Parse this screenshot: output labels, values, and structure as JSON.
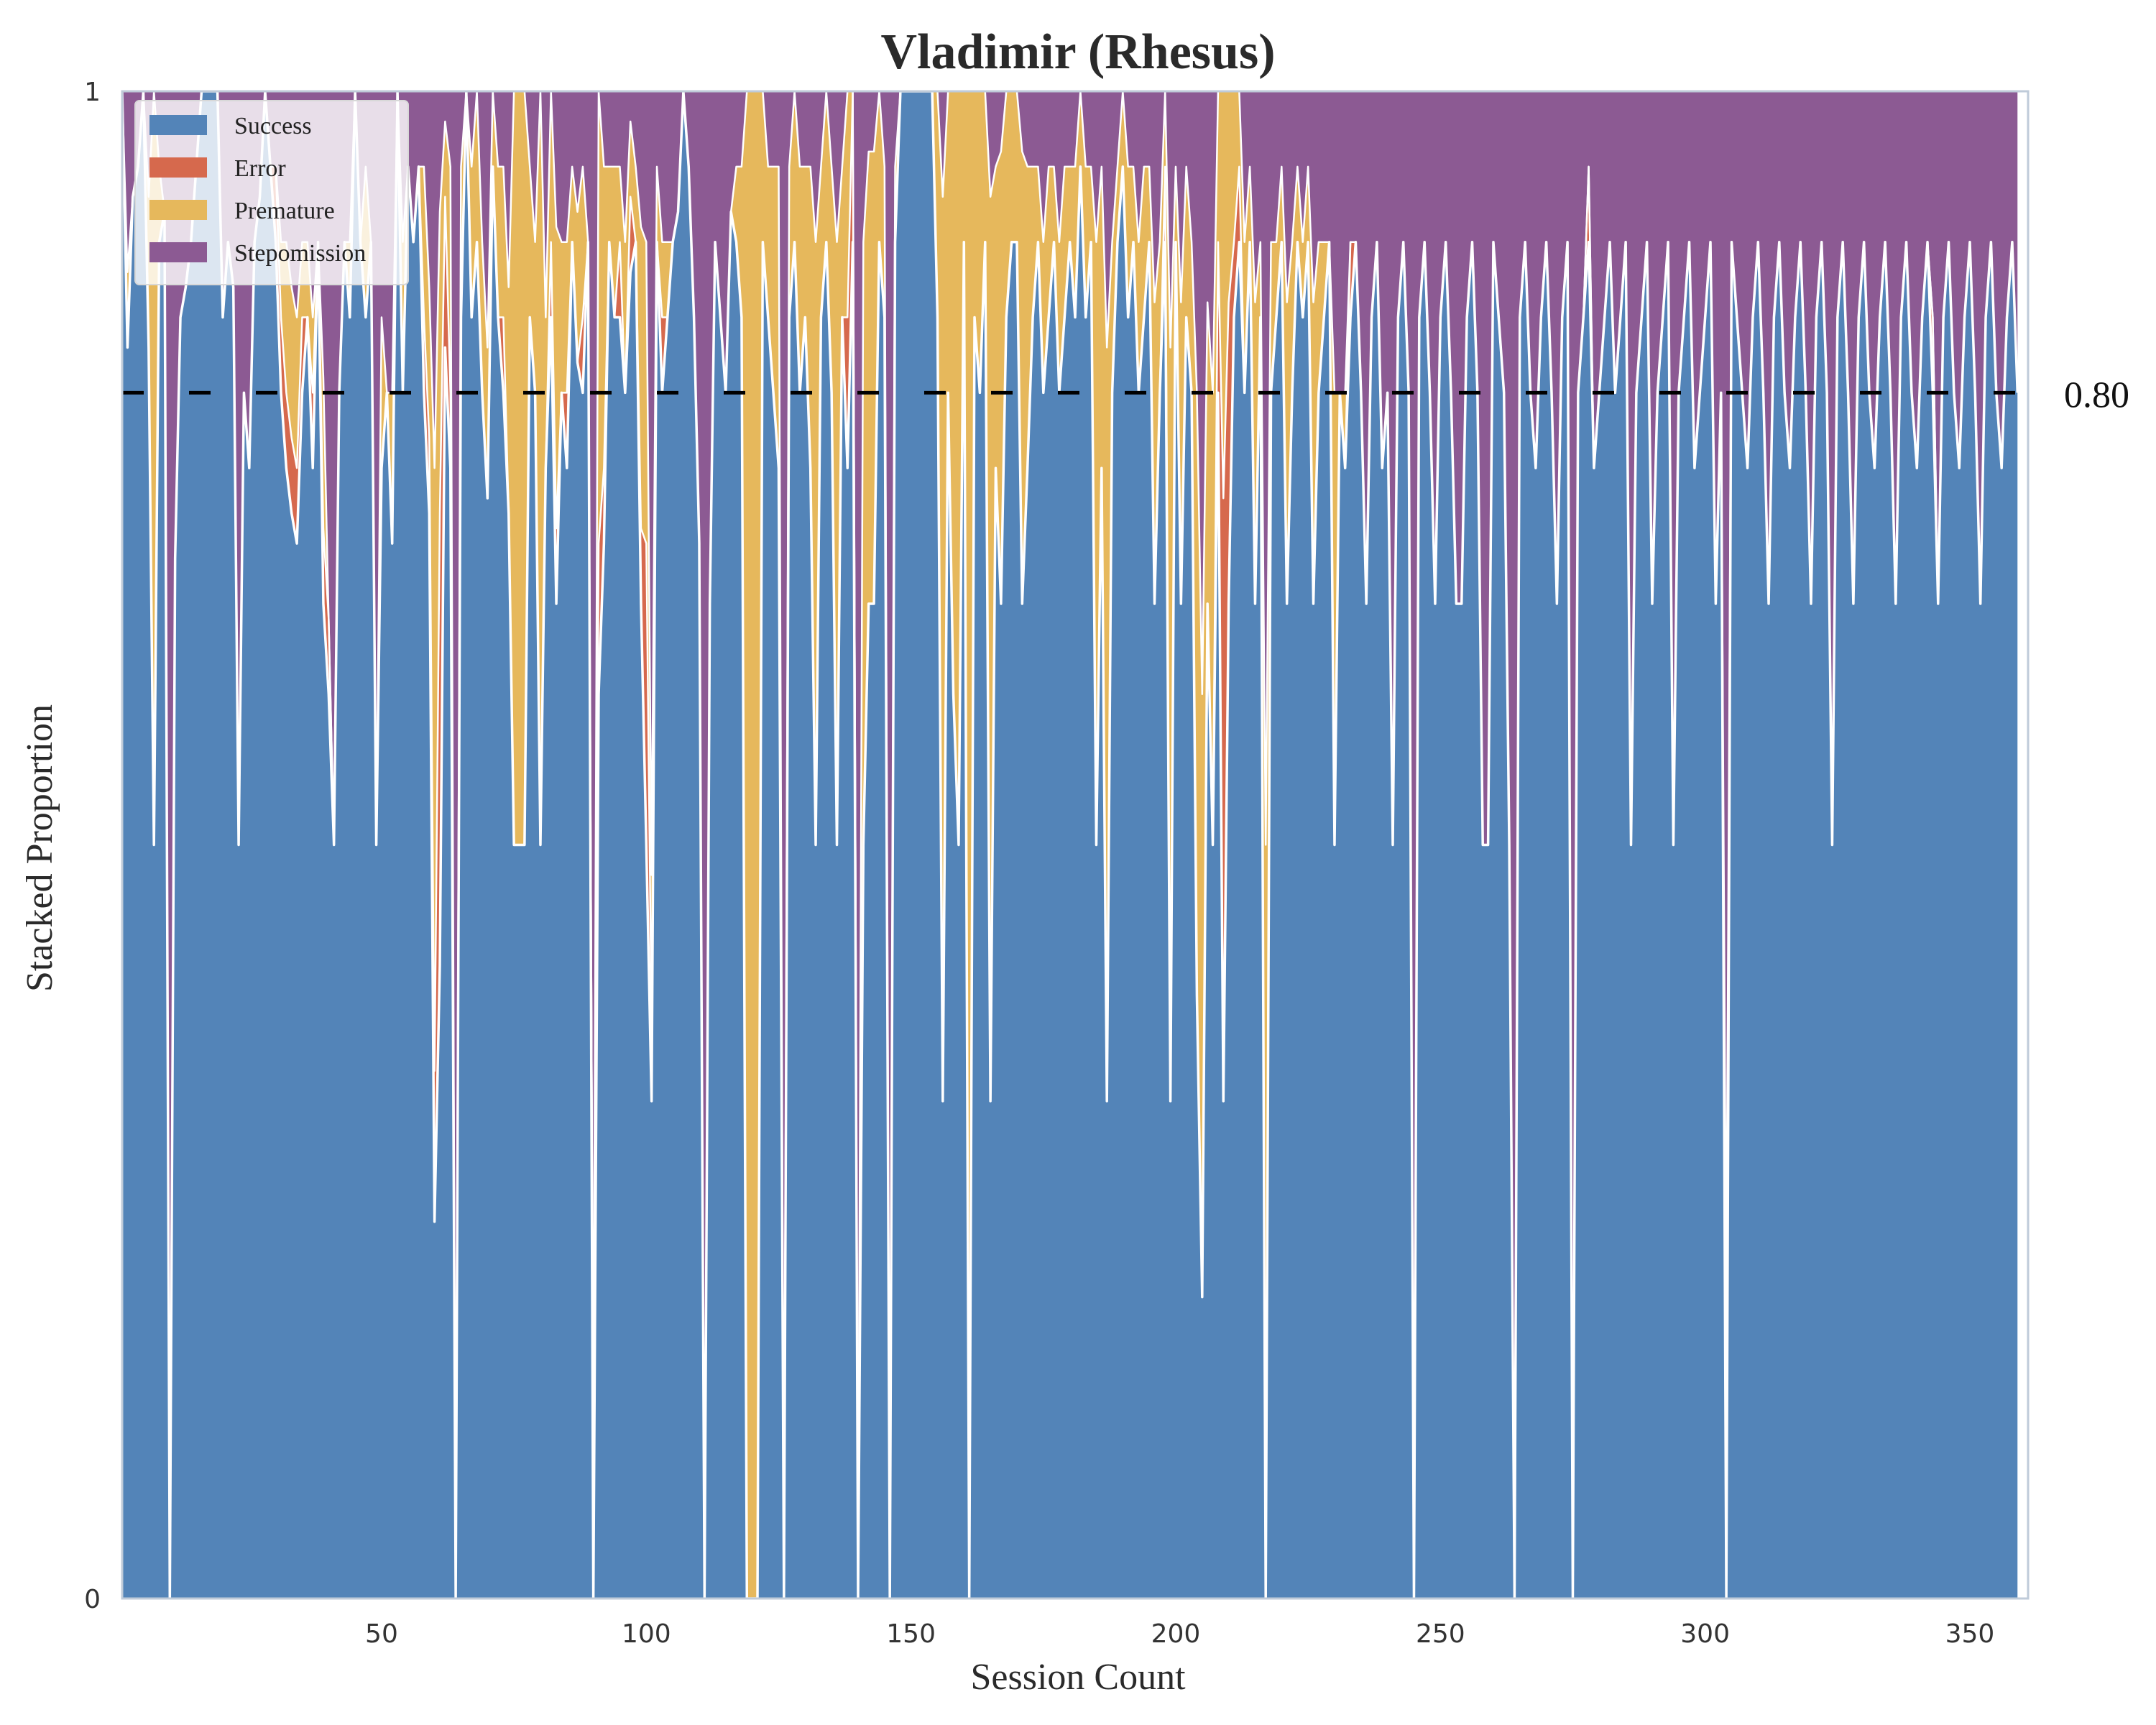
{
  "chart_data": {
    "type": "area",
    "stacked": true,
    "title": "Vladimir (Rhesus)",
    "xlabel": "Session Count",
    "ylabel": "Stacked Proportion",
    "xlim": [
      1,
      361
    ],
    "ylim": [
      0,
      1
    ],
    "x_ticks": [
      50,
      100,
      150,
      200,
      250,
      300,
      350
    ],
    "y_ticks": [
      0,
      1
    ],
    "grid": false,
    "legend_position": "top-left",
    "threshold": {
      "value": 0.8,
      "label": "0.80",
      "style": "dashed",
      "color": "#000000"
    },
    "colors": {
      "Success": "#5384b8",
      "Error": "#d6694d",
      "Premature": "#e6b85c",
      "Stepomission": "#8c5a93"
    },
    "series_names": [
      "Success",
      "Error",
      "Premature",
      "Stepomission"
    ],
    "series_note": "Per-session proportions for sessions 1-361; Success/Error/Premature values per session, Stepomission = remainder to 1.0",
    "success": [
      1,
      0.83,
      0.93,
      0.95,
      1,
      0.83,
      0.5,
      0.9,
      0.92,
      0,
      0.69,
      0.85,
      0.87,
      0.9,
      0.95,
      1,
      1,
      1,
      1,
      0.85,
      0.9,
      0.87,
      0.5,
      0.8,
      0.75,
      0.9,
      0.93,
      1,
      0.95,
      0.9,
      0.8,
      0.75,
      0.72,
      0.7,
      0.8,
      0.85,
      0.75,
      0.9,
      0.66,
      0.6,
      0.5,
      0.8,
      0.9,
      0.85,
      1,
      0.9,
      0.85,
      0.9,
      0.5,
      0.75,
      0.8,
      0.7,
      1,
      0.8,
      0.95,
      0.9,
      0.95,
      0.8,
      0.72,
      0.25,
      0.42,
      0.83,
      0.75,
      0,
      0.85,
      1,
      0.85,
      0.9,
      0.8,
      0.73,
      0.95,
      0.85,
      0.8,
      0.72,
      0.5,
      0.5,
      0.5,
      0.85,
      0.8,
      0.5,
      0.75,
      0.85,
      0.66,
      0.8,
      0.75,
      0.9,
      0.82,
      0.8,
      0.9,
      0,
      0.6,
      0.7,
      0.9,
      0.85,
      0.85,
      0.8,
      0.88,
      0.9,
      0.66,
      0.5,
      0.33,
      0.9,
      0.8,
      0.85,
      0.9,
      0.92,
      1,
      0.95,
      0.85,
      0.7,
      0,
      0.66,
      0.9,
      0.85,
      0.8,
      0.92,
      0.9,
      0.85,
      0,
      0,
      0,
      0.9,
      0.85,
      0.8,
      0.75,
      0,
      0.85,
      0.9,
      0.8,
      0.85,
      0.75,
      0.5,
      0.85,
      0.9,
      0.8,
      0.5,
      0.85,
      0.75,
      0.9,
      0,
      0.5,
      0.66,
      0.66,
      0.9,
      0.85,
      0,
      0.9,
      1,
      1,
      1,
      1,
      1,
      1,
      1,
      0.85,
      0.33,
      0.8,
      0.6,
      0.5,
      0.9,
      0,
      0.85,
      0.8,
      0.9,
      0.33,
      0.75,
      0.66,
      0.85,
      0.9,
      0.9,
      0.66,
      0.75,
      0.85,
      0.9,
      0.8,
      0.85,
      0.9,
      0.8,
      0.85,
      0.9,
      0.85,
      0.95,
      0.85,
      0.9,
      0.5,
      0.75,
      0.33,
      0.8,
      0.9,
      0.95,
      0.85,
      0.9,
      0.8,
      0.85,
      0.9,
      0.66,
      0.8,
      0.9,
      0.33,
      0.9,
      0.66,
      0.85,
      0.8,
      0.4,
      0.2,
      0.66,
      0.5,
      0.8,
      0.33,
      0.66,
      0.85,
      0.9,
      0.8,
      0.9,
      0.66,
      0.85,
      0,
      0.8,
      0.85,
      0.9,
      0.66,
      0.8,
      0.9,
      0.85,
      0.9,
      0.66,
      0.8,
      0.85,
      0.9,
      0.5,
      0.8,
      0.75,
      0.85,
      0.9,
      0.8,
      0.66,
      0.85,
      0.9,
      0.75,
      0.8,
      0.5,
      0.85,
      0.9,
      0.8,
      0,
      0.85,
      0.9,
      0.8,
      0.66,
      0.85,
      0.9,
      0.8,
      0.66,
      0.66,
      0.85,
      0.9,
      0.8,
      0.5,
      0.5,
      0.9,
      0.85,
      0.8,
      0.5,
      0,
      0.85,
      0.9,
      0.8,
      0.75,
      0.85,
      0.9,
      0.8,
      0.66,
      0.85,
      0.9,
      0,
      0.8,
      0.85,
      0.9,
      0.75,
      0.8,
      0.85,
      0.9,
      0.8,
      0.85,
      0.9,
      0.5,
      0.8,
      0.85,
      0.9,
      0.66,
      0.8,
      0.85,
      0.9,
      0.5,
      0.8,
      0.85,
      0.9,
      0.75,
      0.8,
      0.85,
      0.9,
      0.66,
      0.8,
      0,
      0.9,
      0.85,
      0.8,
      0.75,
      0.85,
      0.9,
      0.8,
      0.66,
      0.85,
      0.9,
      0.8,
      0.75,
      0.85,
      0.9,
      0.8,
      0.66,
      0.85,
      0.9,
      0.8,
      0.5,
      0.85,
      0.9,
      0.8,
      0.66,
      0.85,
      0.9,
      0.8,
      0.75,
      0.85,
      0.9,
      0.8,
      0.66,
      0.85,
      0.9,
      0.8,
      0.75,
      0.85,
      0.9,
      0.8,
      0.66,
      0.85,
      0.9,
      0.8,
      0.75,
      0.85,
      0.9,
      0.8,
      0.66,
      0.85,
      0.9,
      0.8,
      0.75,
      0.85,
      0.9,
      0.8
    ],
    "error": [
      0,
      0,
      0,
      0,
      0,
      0,
      0,
      0,
      0,
      0,
      0,
      0,
      0,
      0,
      0,
      0,
      0,
      0,
      0,
      0,
      0,
      0,
      0,
      0,
      0,
      0,
      0,
      0,
      0,
      0.05,
      0.05,
      0.05,
      0.05,
      0.05,
      0.05,
      0,
      0.05,
      0,
      0.05,
      0.05,
      0,
      0,
      0,
      0,
      0,
      0,
      0,
      0,
      0,
      0,
      0,
      0,
      0,
      0,
      0,
      0,
      0,
      0.05,
      0.05,
      0.1,
      0.3,
      0.1,
      0.05,
      0,
      0,
      0,
      0,
      0,
      0,
      0,
      0,
      0,
      0.05,
      0,
      0,
      0,
      0,
      0,
      0,
      0,
      0,
      0.05,
      0.05,
      0,
      0.05,
      0,
      0,
      0.05,
      0,
      0.1,
      0.1,
      0.05,
      0,
      0,
      0.05,
      0,
      0.05,
      0,
      0.05,
      0.2,
      0.05,
      0,
      0.05,
      0,
      0,
      0,
      0,
      0,
      0,
      0,
      0,
      0,
      0,
      0,
      0,
      0,
      0,
      0,
      0,
      0,
      0,
      0,
      0,
      0,
      0,
      0,
      0,
      0,
      0,
      0,
      0,
      0,
      0,
      0,
      0,
      0,
      0,
      0.1,
      0.1,
      0,
      0,
      0,
      0,
      0,
      0,
      0,
      0,
      0,
      0,
      0,
      0,
      0,
      0,
      0,
      0,
      0,
      0,
      0,
      0,
      0,
      0,
      0,
      0,
      0,
      0,
      0,
      0,
      0,
      0,
      0,
      0,
      0,
      0,
      0,
      0,
      0,
      0,
      0,
      0,
      0,
      0,
      0,
      0,
      0,
      0,
      0,
      0,
      0,
      0,
      0,
      0,
      0,
      0,
      0,
      0,
      0,
      0,
      0.05,
      0,
      0,
      0,
      0,
      0,
      0,
      0,
      0,
      0,
      0.1,
      0.4,
      0.2,
      0.05,
      0.05,
      0,
      0,
      0,
      0,
      0,
      0,
      0,
      0,
      0,
      0,
      0,
      0,
      0,
      0,
      0,
      0,
      0,
      0,
      0,
      0,
      0.05,
      0,
      0,
      0,
      0,
      0,
      0,
      0,
      0,
      0,
      0,
      0,
      0,
      0,
      0,
      0,
      0,
      0,
      0,
      0,
      0,
      0,
      0,
      0,
      0,
      0,
      0,
      0,
      0,
      0,
      0,
      0,
      0,
      0,
      0,
      0,
      0,
      0,
      0,
      0,
      0,
      0,
      0,
      0,
      0,
      0.05,
      0,
      0,
      0,
      0,
      0,
      0,
      0,
      0,
      0,
      0,
      0,
      0,
      0,
      0,
      0,
      0,
      0,
      0,
      0,
      0,
      0,
      0,
      0,
      0,
      0,
      0,
      0,
      0,
      0,
      0,
      0,
      0,
      0,
      0,
      0,
      0,
      0,
      0,
      0,
      0,
      0,
      0,
      0,
      0,
      0,
      0,
      0,
      0,
      0,
      0,
      0,
      0,
      0,
      0,
      0,
      0,
      0,
      0,
      0,
      0,
      0,
      0,
      0,
      0,
      0.05,
      0,
      0,
      0,
      0,
      0,
      0,
      0,
      0,
      0,
      0,
      0,
      0,
      0,
      0,
      0,
      0,
      0,
      0,
      0,
      0,
      0,
      0,
      0,
      0,
      0,
      0,
      0,
      0,
      0,
      0,
      0,
      0,
      0,
      0,
      0,
      0,
      0,
      0,
      0,
      0,
      0,
      0,
      0,
      0,
      0,
      0,
      0,
      0,
      0,
      0,
      0,
      0,
      0,
      0
    ],
    "premature": [
      0,
      0.05,
      0,
      0,
      0,
      0.1,
      0.5,
      0.05,
      0,
      0,
      0,
      0,
      0,
      0,
      0,
      0,
      0,
      0,
      0,
      0,
      0,
      0,
      0,
      0,
      0,
      0,
      0,
      0,
      0,
      0,
      0.05,
      0.1,
      0.1,
      0.1,
      0.05,
      0.05,
      0.05,
      0,
      0.1,
      0,
      0,
      0,
      0,
      0.05,
      0,
      0,
      0.1,
      0,
      0,
      0.1,
      0,
      0.1,
      0,
      0.1,
      0,
      0,
      0,
      0.1,
      0.1,
      0.4,
      0.2,
      0.05,
      0.15,
      0,
      0.1,
      0,
      0.1,
      0.1,
      0.1,
      0.1,
      0.05,
      0.1,
      0.1,
      0.15,
      0.5,
      0.5,
      0.5,
      0.1,
      0.1,
      0.5,
      0.1,
      0.1,
      0.2,
      0.1,
      0.1,
      0.05,
      0.1,
      0.1,
      0,
      0,
      0.3,
      0.2,
      0.05,
      0.1,
      0.05,
      0.1,
      0.05,
      0.05,
      0.2,
      0.2,
      0.1,
      0.05,
      0.05,
      0.05,
      0,
      0,
      0,
      0,
      0,
      0,
      0,
      0,
      0,
      0,
      0,
      0,
      0.05,
      0.1,
      1,
      1,
      1,
      0.1,
      0.1,
      0.15,
      0.2,
      0,
      0.1,
      0.1,
      0.15,
      0.1,
      0.2,
      0.4,
      0.1,
      0.1,
      0.15,
      0.4,
      0.1,
      0.2,
      0.1,
      0,
      0.4,
      0.3,
      0.3,
      0.1,
      0.1,
      0,
      0.05,
      0,
      0,
      0,
      0,
      0,
      0,
      0,
      0.15,
      0.6,
      0.2,
      0.4,
      0.5,
      0.1,
      1,
      0.15,
      0.2,
      0.1,
      0.6,
      0.2,
      0.3,
      0.15,
      0.1,
      0.1,
      0.3,
      0.2,
      0.1,
      0.05,
      0.1,
      0.1,
      0.05,
      0.1,
      0.1,
      0.05,
      0.1,
      0.05,
      0.1,
      0.05,
      0.4,
      0.2,
      0.5,
      0.1,
      0.05,
      0.05,
      0.1,
      0.05,
      0.1,
      0.1,
      0.05,
      0.2,
      0.1,
      0.05,
      0.5,
      0.05,
      0.2,
      0.1,
      0.1,
      0.4,
      0.4,
      0.2,
      0.3,
      0.1,
      0.5,
      0.2,
      0.1,
      0.05,
      0.1,
      0.05,
      0.2,
      0.05,
      0.5,
      0.1,
      0.05,
      0.05,
      0.2,
      0.1,
      0.05,
      0.05,
      0.05,
      0.2,
      0.1,
      0.05,
      0,
      0.3,
      0,
      0.05,
      0,
      0,
      0,
      0,
      0,
      0,
      0,
      0,
      0,
      0,
      0,
      0,
      0,
      0,
      0,
      0,
      0,
      0,
      0,
      0,
      0,
      0,
      0,
      0,
      0,
      0,
      0,
      0,
      0,
      0,
      0,
      0,
      0,
      0,
      0,
      0,
      0,
      0,
      0,
      0,
      0,
      0,
      0,
      0,
      0,
      0,
      0,
      0,
      0,
      0,
      0,
      0,
      0,
      0,
      0,
      0,
      0,
      0,
      0,
      0,
      0,
      0,
      0,
      0,
      0,
      0,
      0,
      0,
      0,
      0,
      0,
      0.2,
      0,
      0,
      0,
      0,
      0,
      0,
      0,
      0,
      0,
      0,
      0,
      0,
      0,
      0,
      0,
      0,
      0,
      0,
      0,
      0,
      0,
      0,
      0,
      0,
      0,
      0,
      0,
      0,
      0,
      0,
      0,
      0,
      0,
      0,
      0,
      0,
      0,
      0,
      0,
      0,
      0,
      0,
      0,
      0,
      0,
      0,
      0,
      0,
      0,
      0,
      0,
      0,
      0,
      0,
      0,
      0,
      0,
      0,
      0,
      0,
      0,
      0,
      0,
      0,
      0,
      0,
      0,
      0,
      0,
      0,
      0,
      0,
      0,
      0
    ]
  }
}
